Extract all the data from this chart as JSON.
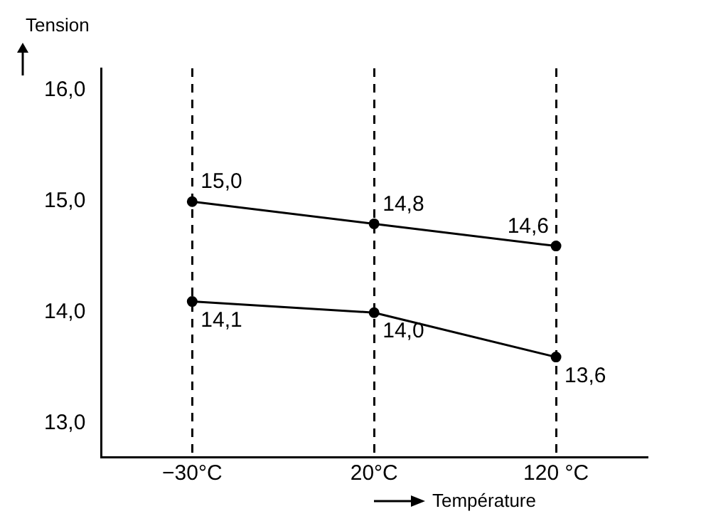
{
  "chart_data": {
    "type": "line",
    "ylabel": "Tension",
    "xlabel": "Température",
    "categories": [
      "−30°C",
      "20°C",
      "120 °C"
    ],
    "series": [
      {
        "color": "#000000",
        "values": [
          15.0,
          14.8,
          14.6
        ],
        "value_labels": [
          "15,0",
          "14,8",
          "14,6"
        ]
      },
      {
        "color": "#000000",
        "values": [
          14.1,
          14.0,
          13.6
        ],
        "value_labels": [
          "14,1",
          "14,0",
          "13,6"
        ]
      }
    ],
    "ylim": [
      12.7,
      16.2
    ],
    "yticks": [
      {
        "value": 13,
        "label": "13,0"
      },
      {
        "value": 14,
        "label": "14,0"
      },
      {
        "value": 15,
        "label": "15,0"
      },
      {
        "value": 16,
        "label": "16,0"
      }
    ],
    "grid": "x",
    "line_style": "solid",
    "marker": "circle",
    "legend": false
  }
}
